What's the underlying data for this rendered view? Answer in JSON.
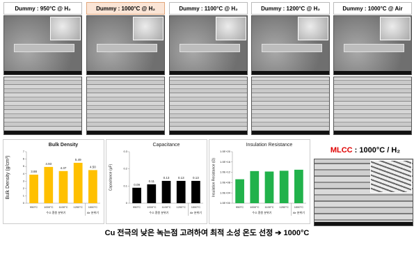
{
  "headers": [
    "Dummy : 950°C @ H₂",
    "Dummy : 1000°C @ H₂",
    "Dummy : 1100°C @ H₂",
    "Dummy : 1200°C @ H₂",
    "Dummy : 1000°C @ Air"
  ],
  "group_labels": [
    "수소 환원 분위기",
    "Air 분위기"
  ],
  "mlcc": {
    "prefix": "MLCC",
    "title": " : 1000°C / H₂"
  },
  "caption": "Cu 전극의 낮은 녹는점 고려하여 최적 소성 온도 선정 ➔ 1000°C",
  "chart_data": [
    {
      "type": "bar",
      "title": "Bulk Density",
      "ylabel": "Bulk Density (g/cm³)",
      "categories": [
        "950°C",
        "1000°C",
        "1100°C",
        "1200°C",
        "1000°C"
      ],
      "values": [
        3.88,
        4.93,
        4.37,
        5.49,
        4.5
      ],
      "value_labels": [
        "3.88",
        "4.93",
        "4.37",
        "5.49",
        "4.50"
      ],
      "color": "#ffc000",
      "ylim": [
        0,
        7
      ],
      "yticks": [
        0,
        1,
        2,
        3,
        4,
        5,
        6,
        7
      ]
    },
    {
      "type": "bar",
      "title": "Capacitance",
      "ylabel": "Capacitance (μF)",
      "categories": [
        "950°C",
        "1000°C",
        "1100°C",
        "1200°C",
        "1000°C"
      ],
      "values": [
        0.09,
        0.11,
        0.13,
        0.13,
        0.13
      ],
      "color": "#000000",
      "ylim": [
        0,
        0.3
      ],
      "yticks": [
        0,
        0.1,
        0.2,
        0.3
      ]
    },
    {
      "type": "bar",
      "title": "Insulation Resistance",
      "ylabel": "Insulation Resistance (Ω)",
      "log": true,
      "categories": [
        "950°C",
        "1000°C",
        "1100°C",
        "1200°C",
        "1000°C"
      ],
      "values": [
        2000000000,
        3000000000000,
        2000000000000,
        4000000000000,
        10000000000000
      ],
      "color": "#21b24b",
      "ylim": [
        1,
        1e+20
      ],
      "yticks": [
        {
          "value": 1,
          "label": "1.0E+00"
        },
        {
          "value": 10000,
          "label": "1.0E+04"
        },
        {
          "value": 100000000,
          "label": "1.0E+08"
        },
        {
          "value": 1000000000000,
          "label": "1.0E+12"
        },
        {
          "value": 10000000000000000,
          "label": "1.0E+16"
        },
        {
          "value": 1e+20,
          "label": "1.0E+20"
        }
      ]
    }
  ]
}
